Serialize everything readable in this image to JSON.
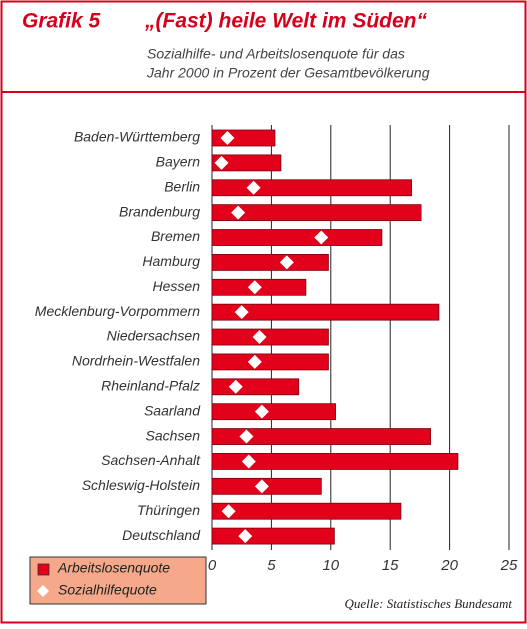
{
  "chart_data": {
    "type": "bar",
    "orientation": "horizontal",
    "label": "Grafik 5",
    "title": "„(Fast) heile Welt im Süden“",
    "subtitle": [
      "Sozialhilfe- und Arbeitslosenquote für das",
      "Jahr 2000 in Prozent der Gesamtbevölkerung"
    ],
    "source": "Quelle: Statistisches Bundesamt",
    "categories": [
      "Baden-Württemberg",
      "Bayern",
      "Berlin",
      "Brandenburg",
      "Bremen",
      "Hamburg",
      "Hessen",
      "Mecklenburg-Vorpommern",
      "Niedersachsen",
      "Nordrhein-Westfalen",
      "Rheinland-Pfalz",
      "Saarland",
      "Sachsen",
      "Sachsen-Anhalt",
      "Schleswig-Holstein",
      "Thüringen",
      "Deutschland"
    ],
    "series": [
      {
        "name": "Arbeitslosenquote",
        "color": "#e2001a",
        "marker": "bar",
        "values": [
          5.3,
          5.8,
          16.8,
          17.6,
          14.3,
          9.8,
          7.9,
          19.1,
          9.8,
          9.8,
          7.3,
          10.4,
          18.4,
          20.7,
          9.2,
          15.9,
          10.3
        ]
      },
      {
        "name": "Sozialhilfequote",
        "color": "#ffffff",
        "marker": "diamond",
        "values": [
          1.3,
          0.8,
          3.5,
          2.2,
          9.2,
          6.3,
          3.6,
          2.5,
          4.0,
          3.6,
          2.0,
          4.2,
          2.9,
          3.1,
          4.2,
          1.4,
          2.8
        ]
      }
    ],
    "xlim": [
      0,
      25
    ],
    "xticks": [
      0,
      5,
      10,
      15,
      20,
      25
    ],
    "grid": true,
    "legend": "bottom-left"
  }
}
